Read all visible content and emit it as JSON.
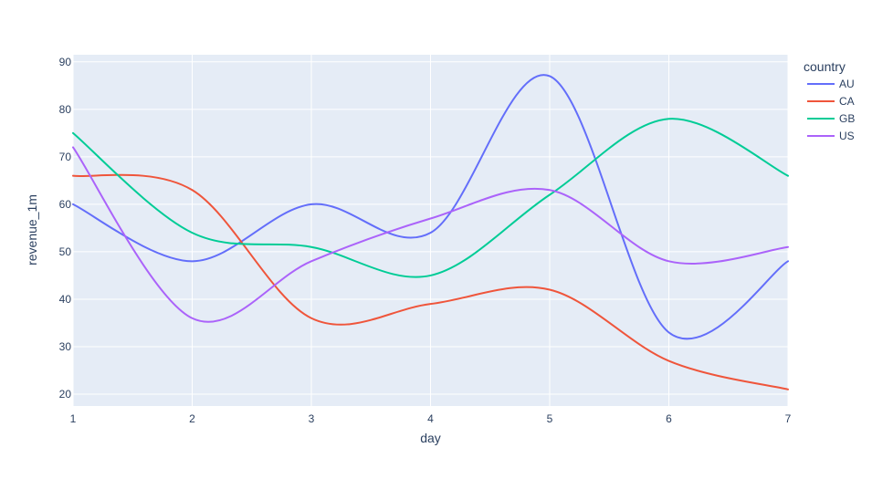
{
  "chart_data": {
    "type": "line",
    "xlabel": "day",
    "ylabel": "revenue_1m",
    "xlim": [
      1,
      7
    ],
    "ylim": [
      17.5,
      91.5
    ],
    "x_ticks": [
      1,
      2,
      3,
      4,
      5,
      6,
      7
    ],
    "y_ticks": [
      20,
      30,
      40,
      50,
      60,
      70,
      80,
      90
    ],
    "x": [
      1,
      2,
      3,
      4,
      5,
      6,
      7
    ],
    "grid": true,
    "line_shape": "spline",
    "legend_title": "country",
    "legend_position": "right",
    "plot_background": "#e5ecf6",
    "series": [
      {
        "name": "AU",
        "color": "#636efa",
        "values": [
          60,
          48,
          60,
          54,
          87,
          33,
          48
        ]
      },
      {
        "name": "CA",
        "color": "#ef553b",
        "values": [
          66,
          63,
          36,
          39,
          42,
          27,
          21
        ]
      },
      {
        "name": "GB",
        "color": "#00cc96",
        "values": [
          75,
          54,
          51,
          45,
          62,
          78,
          66
        ]
      },
      {
        "name": "US",
        "color": "#ab63fa",
        "values": [
          72,
          36,
          48,
          57,
          63,
          48,
          51
        ]
      }
    ]
  }
}
